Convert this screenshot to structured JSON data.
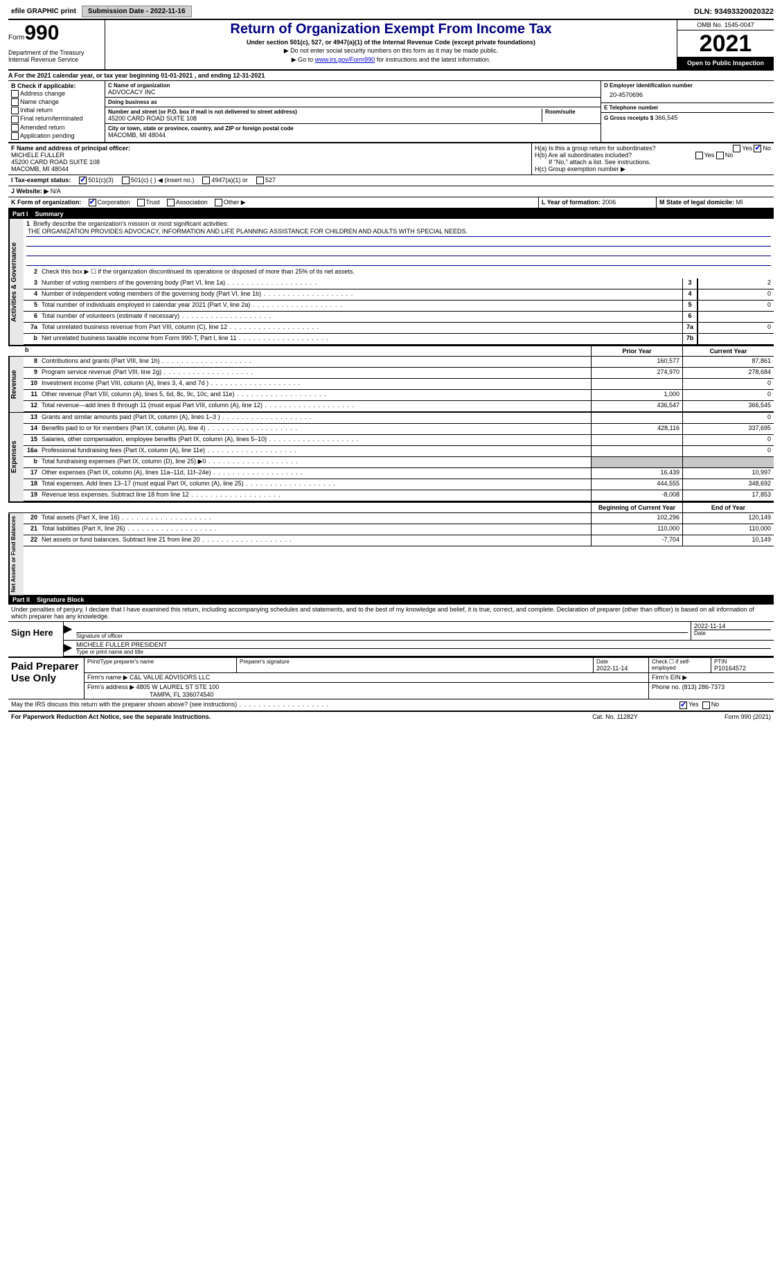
{
  "top": {
    "efile": "efile GRAPHIC print",
    "submission": "Submission Date - 2022-11-16",
    "dln": "DLN: 93493320020322"
  },
  "header": {
    "form_prefix": "Form",
    "form_num": "990",
    "dept": "Department of the Treasury\nInternal Revenue Service",
    "title": "Return of Organization Exempt From Income Tax",
    "sub": "Under section 501(c), 527, or 4947(a)(1) of the Internal Revenue Code (except private foundations)",
    "note1": "▶ Do not enter social security numbers on this form as it may be made public.",
    "note2_pre": "▶ Go to ",
    "note2_link": "www.irs.gov/Form990",
    "note2_post": " for instructions and the latest information.",
    "omb": "OMB No. 1545-0047",
    "year": "2021",
    "open": "Open to Public Inspection"
  },
  "sectionA": "A For the 2021 calendar year, or tax year beginning 01-01-2021   , and ending 12-31-2021",
  "colB": {
    "title": "B Check if applicable:",
    "opts": [
      "Address change",
      "Name change",
      "Initial return",
      "Final return/terminated",
      "Amended return",
      "Application pending"
    ]
  },
  "colC": {
    "name_lbl": "C Name of organization",
    "name": "ADVOCACY INC",
    "dba_lbl": "Doing business as",
    "dba": "",
    "street_lbl": "Number and street (or P.O. box if mail is not delivered to street address)",
    "room_lbl": "Room/suite",
    "street": "45200 CARD ROAD SUITE 108",
    "city_lbl": "City or town, state or province, country, and ZIP or foreign postal code",
    "city": "MACOMB, MI  48044"
  },
  "colD": {
    "ein_lbl": "D Employer identification number",
    "ein": "20-4570696",
    "phone_lbl": "E Telephone number",
    "phone": "",
    "gross_lbl": "G Gross receipts $",
    "gross": "366,545"
  },
  "rowF": {
    "lbl": "F Name and address of principal officer:",
    "name": "MICHELE FULLER",
    "addr1": "45200 CARD ROAD SUITE 108",
    "addr2": "MACOMB, MI  48044"
  },
  "rowH": {
    "a": "H(a)  Is this a group return for subordinates?",
    "b": "H(b)  Are all subordinates included?",
    "b_note": "If \"No,\" attach a list. See instructions.",
    "c": "H(c)  Group exemption number ▶"
  },
  "rowI": {
    "lbl": "I   Tax-exempt status:",
    "o1": "501(c)(3)",
    "o2": "501(c) (  ) ◀ (insert no.)",
    "o3": "4947(a)(1) or",
    "o4": "527"
  },
  "rowJ": {
    "lbl": "J   Website: ▶",
    "val": "N/A"
  },
  "rowK": {
    "lbl": "K Form of organization:",
    "opts": [
      "Corporation",
      "Trust",
      "Association",
      "Other ▶"
    ],
    "l_lbl": "L Year of formation:",
    "l_val": "2006",
    "m_lbl": "M State of legal domicile:",
    "m_val": "MI"
  },
  "part1": {
    "num": "Part I",
    "title": "Summary"
  },
  "summary": {
    "line1_lbl": "Briefly describe the organization's mission or most significant activities:",
    "line1_txt": "THE ORGANIZATION PROVIDES ADVOCACY, INFORMATION AND LIFE PLANNING ASSISTANCE FOR CHILDREN AND ADULTS WITH SPECIAL NEEDS.",
    "line2": "Check this box ▶ ☐ if the organization discontinued its operations or disposed of more than 25% of its net assets.",
    "rows_gov": [
      {
        "n": "3",
        "d": "Number of voting members of the governing body (Part VI, line 1a)",
        "box": "3",
        "v": "2"
      },
      {
        "n": "4",
        "d": "Number of independent voting members of the governing body (Part VI, line 1b)",
        "box": "4",
        "v": "0"
      },
      {
        "n": "5",
        "d": "Total number of individuals employed in calendar year 2021 (Part V, line 2a)",
        "box": "5",
        "v": "0"
      },
      {
        "n": "6",
        "d": "Total number of volunteers (estimate if necessary)",
        "box": "6",
        "v": ""
      },
      {
        "n": "7a",
        "d": "Total unrelated business revenue from Part VIII, column (C), line 12",
        "box": "7a",
        "v": "0"
      },
      {
        "n": "b",
        "d": "Net unrelated business taxable income from Form 990-T, Part I, line 11",
        "box": "7b",
        "v": ""
      }
    ],
    "col_prior": "Prior Year",
    "col_current": "Current Year",
    "rows_rev": [
      {
        "n": "8",
        "d": "Contributions and grants (Part VIII, line 1h)",
        "p": "160,577",
        "c": "87,861"
      },
      {
        "n": "9",
        "d": "Program service revenue (Part VIII, line 2g)",
        "p": "274,970",
        "c": "278,684"
      },
      {
        "n": "10",
        "d": "Investment income (Part VIII, column (A), lines 3, 4, and 7d )",
        "p": "",
        "c": "0"
      },
      {
        "n": "11",
        "d": "Other revenue (Part VIII, column (A), lines 5, 6d, 8c, 9c, 10c, and 11e)",
        "p": "1,000",
        "c": "0"
      },
      {
        "n": "12",
        "d": "Total revenue—add lines 8 through 11 (must equal Part VIII, column (A), line 12)",
        "p": "436,547",
        "c": "366,545"
      }
    ],
    "rows_exp": [
      {
        "n": "13",
        "d": "Grants and similar amounts paid (Part IX, column (A), lines 1–3 )",
        "p": "",
        "c": "0"
      },
      {
        "n": "14",
        "d": "Benefits paid to or for members (Part IX, column (A), line 4)",
        "p": "428,116",
        "c": "337,695"
      },
      {
        "n": "15",
        "d": "Salaries, other compensation, employee benefits (Part IX, column (A), lines 5–10)",
        "p": "",
        "c": "0"
      },
      {
        "n": "16a",
        "d": "Professional fundraising fees (Part IX, column (A), line 11e)",
        "p": "",
        "c": "0"
      },
      {
        "n": "b",
        "d": "Total fundraising expenses (Part IX, column (D), line 25) ▶0",
        "p": "shade",
        "c": "shade"
      },
      {
        "n": "17",
        "d": "Other expenses (Part IX, column (A), lines 11a–11d, 11f–24e)",
        "p": "16,439",
        "c": "10,997"
      },
      {
        "n": "18",
        "d": "Total expenses. Add lines 13–17 (must equal Part IX, column (A), line 25)",
        "p": "444,555",
        "c": "348,692"
      },
      {
        "n": "19",
        "d": "Revenue less expenses. Subtract line 18 from line 12",
        "p": "-8,008",
        "c": "17,853"
      }
    ],
    "col_begin": "Beginning of Current Year",
    "col_end": "End of Year",
    "rows_net": [
      {
        "n": "20",
        "d": "Total assets (Part X, line 16)",
        "p": "102,296",
        "c": "120,149"
      },
      {
        "n": "21",
        "d": "Total liabilities (Part X, line 26)",
        "p": "110,000",
        "c": "110,000"
      },
      {
        "n": "22",
        "d": "Net assets or fund balances. Subtract line 21 from line 20",
        "p": "-7,704",
        "c": "10,149"
      }
    ]
  },
  "part2": {
    "num": "Part II",
    "title": "Signature Block"
  },
  "sig": {
    "decl": "Under penalties of perjury, I declare that I have examined this return, including accompanying schedules and statements, and to the best of my knowledge and belief, it is true, correct, and complete. Declaration of preparer (other than officer) is based on all information of which preparer has any knowledge.",
    "here": "Sign Here",
    "date": "2022-11-14",
    "sig_lbl": "Signature of officer",
    "date_lbl": "Date",
    "name": "MICHELE FULLER  PRESIDENT",
    "name_lbl": "Type or print name and title"
  },
  "prep": {
    "title": "Paid Preparer Use Only",
    "h1": "Print/Type preparer's name",
    "h2": "Preparer's signature",
    "h3": "Date",
    "h3v": "2022-11-14",
    "h4": "Check ☐ if self-employed",
    "h5": "PTIN",
    "h5v": "P10164572",
    "firm_lbl": "Firm's name    ▶",
    "firm": "C&L VALUE ADVISORS LLC",
    "ein_lbl": "Firm's EIN ▶",
    "ein": "",
    "addr_lbl": "Firm's address ▶",
    "addr1": "4805 W LAUREL ST STE 100",
    "addr2": "TAMPA, FL  336074540",
    "phone_lbl": "Phone no.",
    "phone": "(813) 286-7373"
  },
  "may": "May the IRS discuss this return with the preparer shown above? (see instructions)",
  "footer": {
    "l": "For Paperwork Reduction Act Notice, see the separate instructions.",
    "m": "Cat. No. 11282Y",
    "r": "Form 990 (2021)"
  },
  "vtabs": {
    "gov": "Activities & Governance",
    "rev": "Revenue",
    "exp": "Expenses",
    "net": "Net Assets or Fund Balances"
  }
}
